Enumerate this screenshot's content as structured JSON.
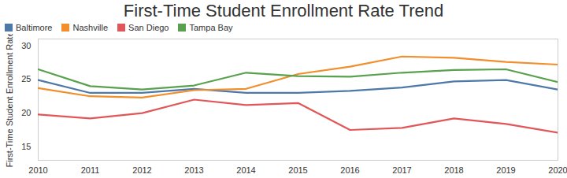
{
  "chart_data": {
    "type": "line",
    "title": "First-Time Student Enrollment Rate Trend",
    "y_label": "First-Time Student Enrollment Rate",
    "x": [
      2010,
      2011,
      2012,
      2013,
      2014,
      2015,
      2016,
      2017,
      2018,
      2019,
      2020
    ],
    "series": [
      {
        "name": "Baltimore",
        "color": "#4e79a7",
        "values": [
          24.9,
          23.0,
          23.0,
          23.6,
          23.0,
          23.0,
          23.3,
          23.8,
          24.7,
          24.9,
          23.5
        ]
      },
      {
        "name": "Nashville",
        "color": "#f28e2b",
        "values": [
          23.7,
          22.5,
          22.3,
          23.4,
          23.6,
          25.8,
          26.9,
          28.4,
          28.2,
          27.6,
          27.2
        ]
      },
      {
        "name": "San Diego",
        "color": "#e15759",
        "values": [
          19.8,
          19.2,
          20.0,
          22.0,
          21.2,
          21.5,
          17.5,
          17.8,
          19.2,
          18.4,
          17.1
        ]
      },
      {
        "name": "Tampa Bay",
        "color": "#59a14f",
        "values": [
          26.5,
          24.0,
          23.5,
          24.1,
          26.0,
          25.5,
          25.4,
          26.0,
          26.4,
          26.5,
          24.6
        ]
      }
    ],
    "xlim": [
      2010,
      2020
    ],
    "xticks": [
      2010,
      2011,
      2012,
      2013,
      2014,
      2015,
      2016,
      2017,
      2018,
      2019,
      2020
    ],
    "ylim": [
      13,
      31
    ],
    "yticks": [
      15,
      20,
      25,
      30
    ],
    "grid": false,
    "legend": "top-left"
  }
}
